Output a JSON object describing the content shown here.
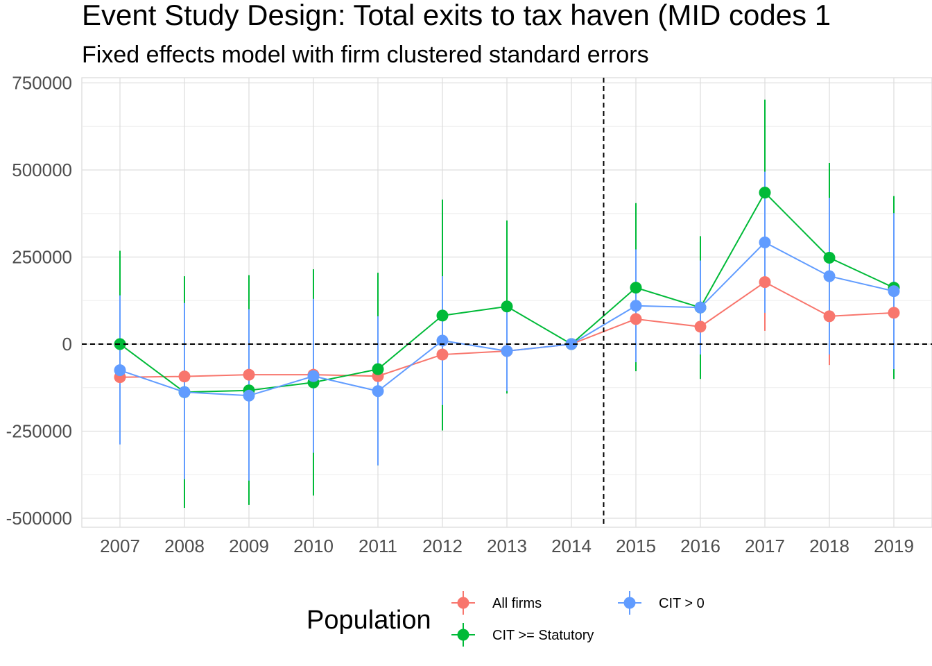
{
  "chart_data": {
    "type": "line",
    "title": "Event Study Design: Total exits to tax haven (MID codes 1",
    "subtitle": "Fixed effects model with firm clustered standard errors",
    "xlabel": "",
    "ylabel": "",
    "x": [
      "2007",
      "2008",
      "2009",
      "2010",
      "2011",
      "2012",
      "2013",
      "2014",
      "2015",
      "2016",
      "2017",
      "2018",
      "2019"
    ],
    "ylim": [
      -525000,
      760000
    ],
    "y_ticks": [
      750000,
      500000,
      250000,
      0,
      -250000,
      -500000
    ],
    "y_tick_labels": [
      "750000",
      "500000",
      "250000",
      "0",
      "-250000",
      "-500000"
    ],
    "reference_lines": {
      "y": 0,
      "x_between": [
        "2014",
        "2015"
      ],
      "style": "dashed"
    },
    "grid": true,
    "legend": {
      "title": "Population",
      "position": "bottom"
    },
    "series": [
      {
        "name": "All firms",
        "color": "#F8766D",
        "values": [
          -95000,
          -93000,
          -88000,
          -88000,
          -92000,
          -30000,
          -20000,
          0,
          72000,
          50000,
          178000,
          80000,
          90000
        ],
        "lower": [
          -100000,
          -98000,
          -93000,
          -93000,
          -97000,
          -35000,
          -25000,
          0,
          67000,
          45000,
          38000,
          -60000,
          85000
        ],
        "upper": [
          -90000,
          -88000,
          -83000,
          -83000,
          -87000,
          -25000,
          -15000,
          0,
          77000,
          55000,
          318000,
          220000,
          95000
        ]
      },
      {
        "name": "CIT >= Statutory",
        "color": "#00BA38",
        "values": [
          0,
          -138000,
          -133000,
          -110000,
          -72000,
          82000,
          108000,
          0,
          162000,
          105000,
          435000,
          248000,
          162000
        ],
        "lower": [
          -268000,
          -470000,
          -462000,
          -435000,
          -348000,
          -248000,
          -142000,
          0,
          -78000,
          -100000,
          168000,
          -25000,
          -100000
        ],
        "upper": [
          268000,
          195000,
          198000,
          215000,
          205000,
          415000,
          355000,
          0,
          405000,
          310000,
          702000,
          520000,
          425000
        ]
      },
      {
        "name": "CIT > 0",
        "color": "#619CFF",
        "values": [
          -75000,
          -138000,
          -148000,
          -92000,
          -135000,
          10000,
          -20000,
          0,
          110000,
          105000,
          292000,
          195000,
          152000
        ],
        "lower": [
          -288000,
          -388000,
          -392000,
          -312000,
          -348000,
          -175000,
          -135000,
          0,
          -52000,
          -30000,
          90000,
          -30000,
          -72000
        ],
        "upper": [
          140000,
          118000,
          100000,
          130000,
          80000,
          195000,
          95000,
          0,
          272000,
          240000,
          495000,
          420000,
          376000
        ]
      }
    ]
  },
  "legend_rows": [
    [
      "All firms",
      "CIT > 0"
    ],
    [
      "CIT >= Statutory"
    ]
  ]
}
